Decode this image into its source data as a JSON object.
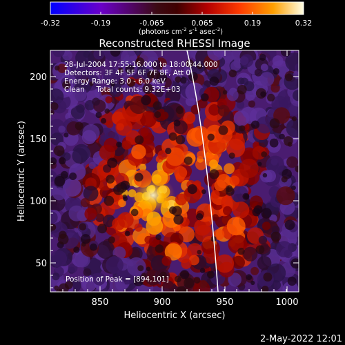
{
  "colorbar": {
    "ticks": [
      "-0.32",
      "-0.19",
      "-0.065",
      "0.065",
      "0.19",
      "0.32"
    ],
    "units_prefix": "(photons cm",
    "units_exp1": "-2",
    "units_s": " s",
    "units_exp2": "-1",
    "units_asec": " asec",
    "units_exp3": "-2",
    "units_suffix": ")"
  },
  "image": {
    "title": "Reconstructed RHESSI Image",
    "info": [
      "28-Jul-2004 17:55:16.000 to 18:00:44.000",
      "Detectors: 3F 4F 5F 6F 7F 8F, Att 0",
      "Energy Range: 3.0 - 6.0 keV",
      "Clean     Total counts: 9.32E+03"
    ],
    "peak": "Position of Peak = [894,101]",
    "xlabel": "Heliocentric X (arcsec)",
    "ylabel": "Heliocentric Y (arcsec)",
    "xticks": [
      "850",
      "900",
      "950",
      "1000"
    ],
    "yticks": [
      "50",
      "100",
      "150",
      "200"
    ]
  },
  "footer": {
    "timestamp": "2-May-2022 12:01"
  }
}
